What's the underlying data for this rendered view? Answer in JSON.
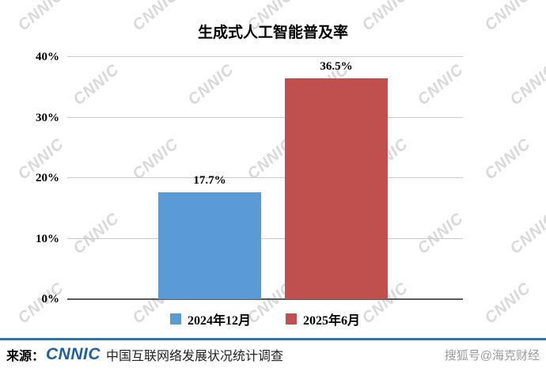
{
  "chart_data": {
    "type": "bar",
    "title": "生成式人工智能普及率",
    "categories": [
      "2024年12月",
      "2025年6月"
    ],
    "values": [
      17.7,
      36.5
    ],
    "value_labels": [
      "17.7%",
      "36.5%"
    ],
    "bar_colors": [
      "#5B9BD5",
      "#C0504D"
    ],
    "xlabel": "",
    "ylabel": "",
    "ylim": [
      0,
      40
    ],
    "yticks": [
      "0%",
      "10%",
      "20%",
      "30%",
      "40%"
    ],
    "grid": true,
    "legend_position": "bottom"
  },
  "footer": {
    "source_prefix": "来源：",
    "logo_text": "CNNIC",
    "source_text": "中国互联网络发展状况统计调查",
    "credit_text": "搜狐号@海克财经"
  },
  "watermark": {
    "text": "CNNIC"
  },
  "colors": {
    "bar_blue": "#5B9BD5",
    "bar_red": "#C0504D",
    "footer_line_blue": "#2E75B6",
    "logo_blue": "#1B5FAA",
    "watermark_gray": "#d9d9d9"
  }
}
